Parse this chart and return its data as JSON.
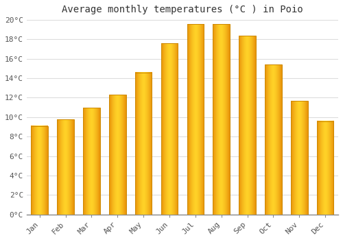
{
  "title": "Average monthly temperatures (°C ) in Poio",
  "months": [
    "Jan",
    "Feb",
    "Mar",
    "Apr",
    "May",
    "Jun",
    "Jul",
    "Aug",
    "Sep",
    "Oct",
    "Nov",
    "Dec"
  ],
  "temperatures": [
    9.1,
    9.8,
    11.0,
    12.3,
    14.6,
    17.6,
    19.6,
    19.6,
    18.4,
    15.4,
    11.7,
    9.6
  ],
  "bar_color_dark": "#E8920A",
  "bar_color_light": "#FFD040",
  "bar_edge_color": "#CC8800",
  "background_color": "#FFFFFF",
  "plot_bg_color": "#FFFFFF",
  "grid_color": "#DDDDDD",
  "ylim": [
    0,
    20
  ],
  "yticks": [
    0,
    2,
    4,
    6,
    8,
    10,
    12,
    14,
    16,
    18,
    20
  ],
  "ytick_labels": [
    "0°C",
    "2°C",
    "4°C",
    "6°C",
    "8°C",
    "10°C",
    "12°C",
    "14°C",
    "16°C",
    "18°C",
    "20°C"
  ],
  "title_fontsize": 10,
  "tick_fontsize": 8,
  "figsize": [
    5.0,
    3.5
  ],
  "dpi": 100,
  "bar_width": 0.65
}
